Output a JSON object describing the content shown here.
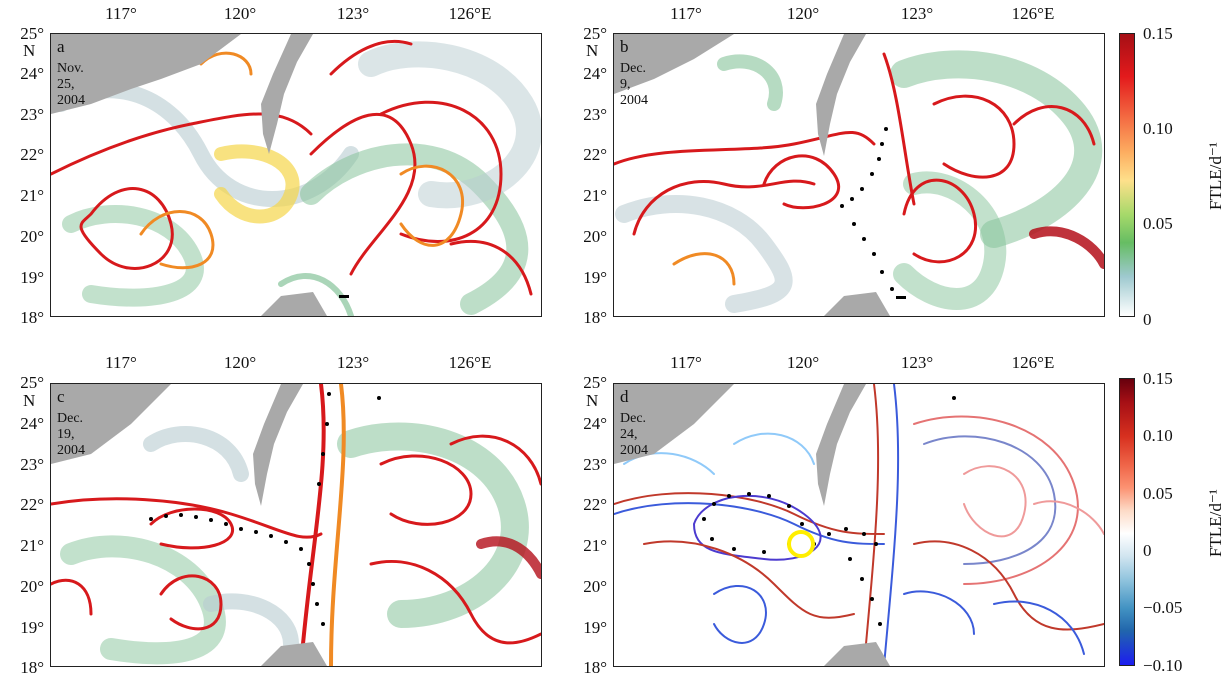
{
  "x_ticks": [
    "117°",
    "120°",
    "123°",
    "126°E"
  ],
  "y_ticks": [
    "25°",
    "24°",
    "23°",
    "22°",
    "21°",
    "20°",
    "19°",
    "18°"
  ],
  "north": "N",
  "panels": [
    {
      "label": "a",
      "date": "Nov. 25, 2004"
    },
    {
      "label": "b",
      "date": "Dec. 9, 2004"
    },
    {
      "label": "c",
      "date": "Dec. 19, 2004"
    },
    {
      "label": "d",
      "date": "Dec. 24, 2004"
    }
  ],
  "colorbar_top": {
    "title": "FTLE/d⁻¹",
    "ticks": [
      "0.15",
      "0.10",
      "0.05",
      "0"
    ]
  },
  "colorbar_bottom": {
    "title": "FTLE/d⁻¹",
    "ticks": [
      "0.15",
      "0.10",
      "0.05",
      "0",
      "−0.05",
      "−0.10"
    ]
  },
  "colors": {
    "land": "#a9a9a9",
    "ridge_red": "#d7191c",
    "ridge_orange": "#f08a24",
    "ridge_yellow": "#f5d64a",
    "ridge_green": "#86c39a",
    "ridge_grey": "#b8cbd0",
    "drifter": "#000000",
    "marker": "#ffee00"
  }
}
